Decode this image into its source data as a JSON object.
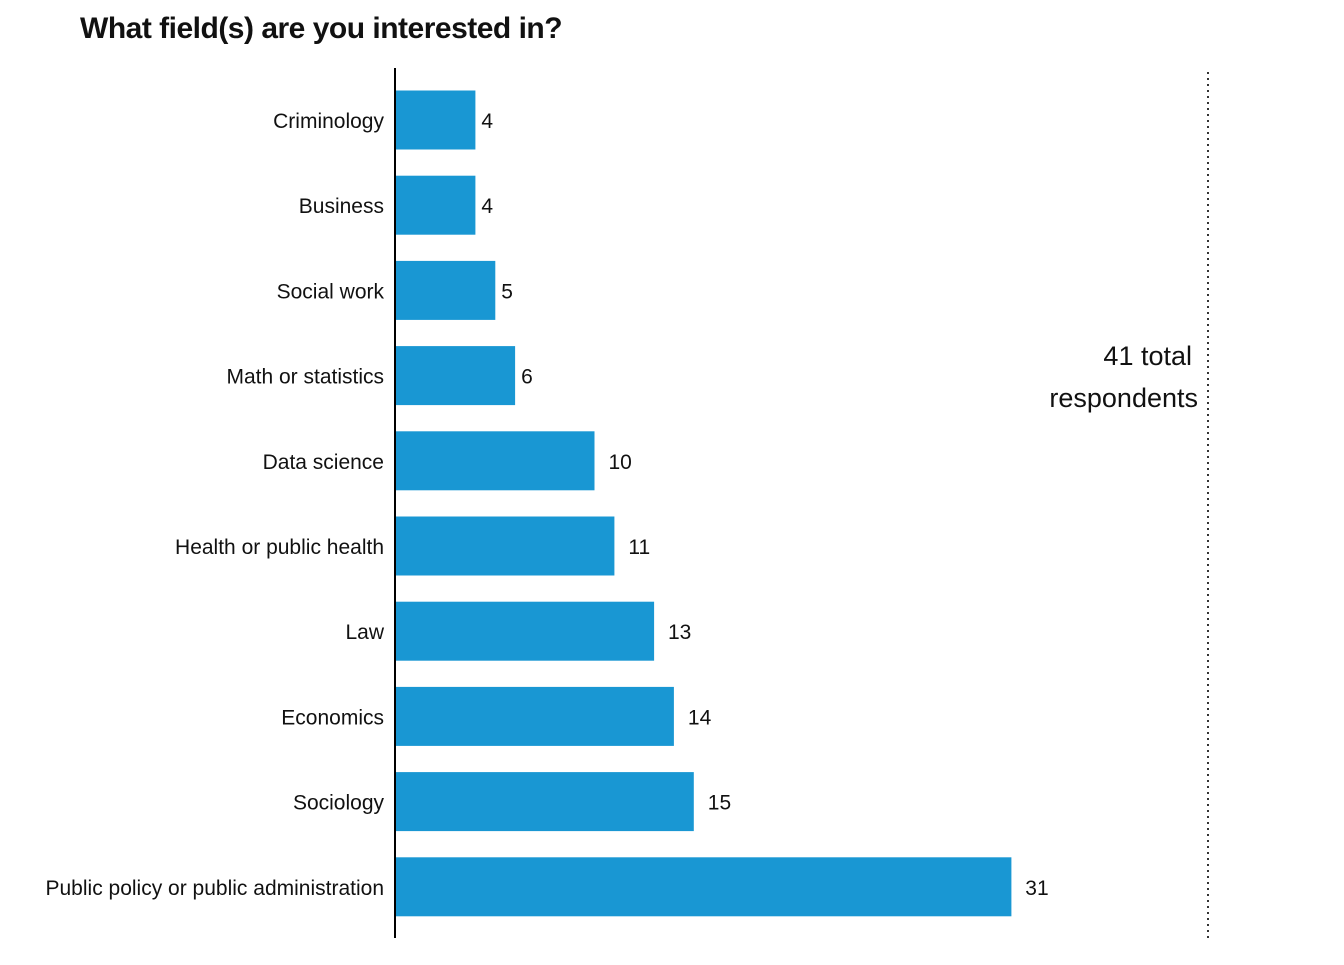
{
  "chart_data": {
    "type": "bar",
    "orientation": "horizontal",
    "title": "What field(s) are you interested in?",
    "xlabel": "",
    "ylabel": "",
    "categories": [
      "Criminology",
      "Business",
      "Social work",
      "Math or statistics",
      "Data science",
      "Health or public health",
      "Law",
      "Economics",
      "Sociology",
      "Public policy or public administration"
    ],
    "values": [
      4,
      4,
      5,
      6,
      10,
      11,
      13,
      14,
      15,
      31
    ],
    "xlim": [
      0,
      41
    ],
    "bar_color": "#1997d3",
    "reference_line": {
      "value": 41,
      "style": "dotted",
      "label_lines": [
        "41 total",
        "respondents"
      ]
    },
    "grid": false,
    "legend": "none"
  }
}
